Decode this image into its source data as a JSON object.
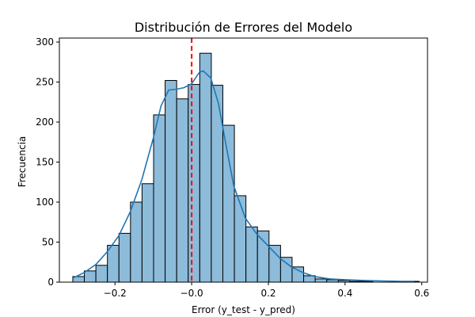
{
  "chart_data": {
    "type": "histogram",
    "title": "Distribución de Errores del Modelo",
    "xlabel": "Error (y_test - y_pred)",
    "ylabel": "Frecuencia",
    "xlim": [
      -0.345,
      0.615
    ],
    "ylim": [
      0,
      305
    ],
    "xticks": [
      -0.2,
      0.0,
      0.2,
      0.4,
      0.6
    ],
    "xtick_labels": [
      "−0.2",
      "−0.0",
      "0.2",
      "0.4",
      "0.6"
    ],
    "yticks": [
      0,
      50,
      100,
      150,
      200,
      250,
      300
    ],
    "ytick_labels": [
      "0",
      "50",
      "100",
      "150",
      "200",
      "250",
      "300"
    ],
    "bins": {
      "edges": [
        -0.31,
        -0.2799,
        -0.2498,
        -0.2197,
        -0.1896,
        -0.1595,
        -0.1294,
        -0.0993,
        -0.0692,
        -0.0391,
        -0.009,
        0.0211,
        0.0512,
        0.0813,
        0.1114,
        0.1415,
        0.1716,
        0.2017,
        0.2318,
        0.2619,
        0.292,
        0.3221,
        0.3522,
        0.3823,
        0.4124,
        0.4425,
        0.4726,
        0.5027,
        0.5328,
        0.5629,
        0.593
      ],
      "counts": [
        7,
        14,
        21,
        46,
        61,
        100,
        123,
        209,
        252,
        229,
        247,
        286,
        246,
        196,
        108,
        69,
        64,
        46,
        31,
        19,
        8,
        4,
        3,
        2,
        1,
        1,
        0,
        0,
        0,
        1
      ]
    },
    "kde": {
      "x": [
        -0.31,
        -0.28,
        -0.25,
        -0.22,
        -0.19,
        -0.16,
        -0.13,
        -0.1,
        -0.08,
        -0.06,
        -0.04,
        -0.02,
        0.0,
        0.02,
        0.03,
        0.05,
        0.07,
        0.09,
        0.11,
        0.14,
        0.17,
        0.2,
        0.23,
        0.26,
        0.29,
        0.32,
        0.36,
        0.4,
        0.45,
        0.5,
        0.55,
        0.58
      ],
      "y": [
        5,
        12,
        22,
        38,
        58,
        88,
        128,
        180,
        220,
        240,
        241,
        243,
        248,
        262,
        264,
        255,
        223,
        170,
        120,
        80,
        60,
        45,
        30,
        19,
        12,
        7,
        4,
        3,
        2,
        1.5,
        1,
        1
      ]
    },
    "mean_line": {
      "x": 0.0,
      "color": "#ff0000",
      "style": "dashed"
    },
    "colors": {
      "bar_fill": "#8dbbda",
      "bar_edge": "#000000",
      "kde": "#1f77b4"
    },
    "grid": false
  }
}
